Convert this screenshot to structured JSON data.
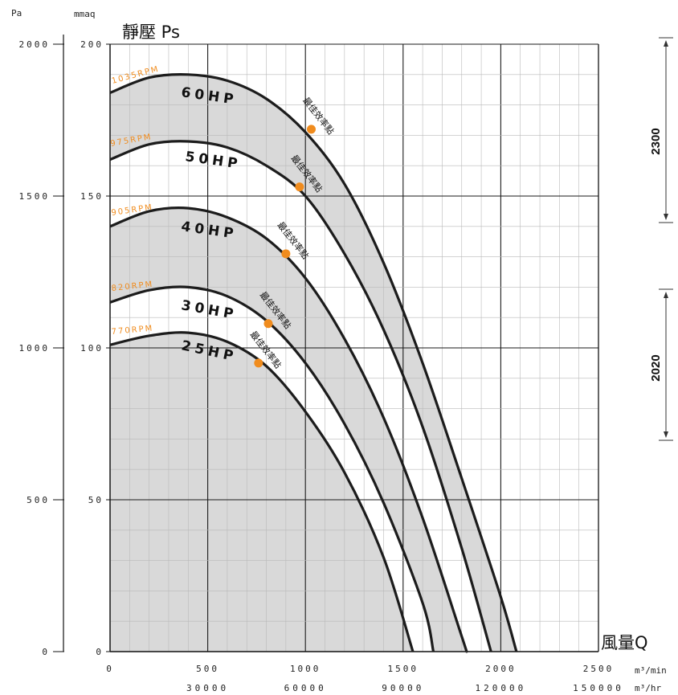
{
  "chart_data": {
    "type": "line",
    "title": "",
    "ylabel": "靜壓 Ps",
    "xlabel": "風量Q",
    "y_units": [
      "Pa",
      "mmaq"
    ],
    "x_units": [
      "m³/min",
      "m³/hr"
    ],
    "xlim": [
      0,
      2500
    ],
    "ylim": [
      0,
      200
    ],
    "x_ticks_min": [
      "0",
      "500",
      "1000",
      "1500",
      "2000",
      "2500"
    ],
    "x_ticks_hr": [
      "30000",
      "60000",
      "90000",
      "120000",
      "150000"
    ],
    "y_ticks_mmaq": [
      "0",
      "50",
      "100",
      "150",
      "200"
    ],
    "y_ticks_pa": [
      "0",
      "500",
      "1000",
      "1500",
      "2000"
    ],
    "grid": true,
    "series": [
      {
        "name": "60HP",
        "rpm": "1035RPM",
        "x": [
          0,
          200,
          400,
          600,
          800,
          1000,
          1200,
          1400,
          1600,
          1800,
          2000,
          2080
        ],
        "y": [
          184,
          189,
          190,
          188,
          182,
          171,
          154,
          128,
          95,
          57,
          18,
          0
        ],
        "bep": [
          1030,
          172
        ]
      },
      {
        "name": "50HP",
        "rpm": "975RPM",
        "x": [
          0,
          200,
          400,
          600,
          800,
          1000,
          1200,
          1400,
          1600,
          1800,
          1950
        ],
        "y": [
          162,
          167,
          168,
          166,
          160,
          150,
          131,
          106,
          74,
          34,
          0
        ],
        "bep": [
          970,
          153
        ]
      },
      {
        "name": "40HP",
        "rpm": "905RPM",
        "x": [
          0,
          200,
          400,
          600,
          800,
          1000,
          1200,
          1400,
          1600,
          1800,
          1825
        ],
        "y": [
          140,
          145,
          146,
          143,
          136,
          123,
          103,
          77,
          44,
          5,
          0
        ],
        "bep": [
          900,
          131
        ]
      },
      {
        "name": "30HP",
        "rpm": "820RPM",
        "x": [
          0,
          200,
          400,
          600,
          800,
          1000,
          1200,
          1400,
          1600,
          1655
        ],
        "y": [
          115,
          119,
          120,
          117,
          109,
          95,
          75,
          49,
          16,
          0
        ],
        "bep": [
          810,
          108
        ]
      },
      {
        "name": "25HP",
        "rpm": "770RPM",
        "x": [
          0,
          200,
          400,
          600,
          800,
          1000,
          1200,
          1400,
          1550
        ],
        "y": [
          101,
          104,
          105,
          102,
          94,
          79,
          59,
          31,
          0
        ],
        "bep": [
          760,
          95
        ]
      }
    ],
    "bep_label": "最佳效率點",
    "dimensions": [
      "2300",
      "2020"
    ],
    "colors": {
      "curve": "#1c1c1c",
      "shade": "#d9d9d9",
      "bep": "#f08c1e",
      "rpm": "#f08c1e",
      "grid_minor": "#b9b9b9",
      "grid_major": "#1a1a1a"
    }
  }
}
